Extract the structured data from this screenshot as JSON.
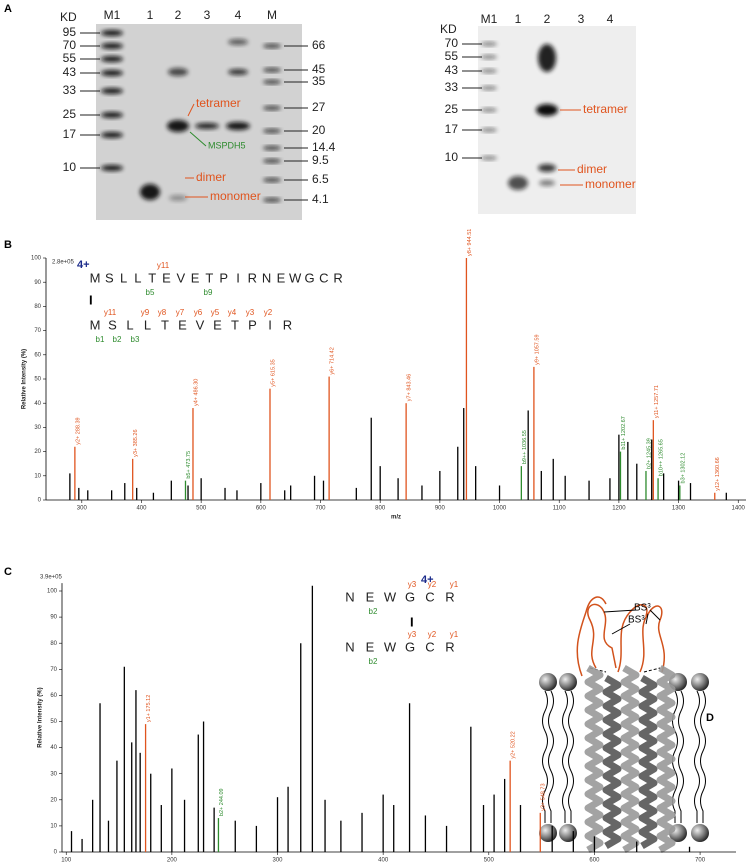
{
  "panel_labels": {
    "a": "A",
    "b": "B",
    "c": "C",
    "d": "D"
  },
  "gel_a": {
    "unit": "KD",
    "lanes": [
      "M1",
      "1",
      "2",
      "3",
      "4",
      "M"
    ],
    "markers_left": [
      "95",
      "70",
      "55",
      "43",
      "33",
      "25",
      "17",
      "10"
    ],
    "markers_right": [
      "66",
      "45",
      "35",
      "27",
      "20",
      "14.4",
      "9.5",
      "6.5",
      "4.1"
    ],
    "annotations": [
      "tetramer",
      "MSPDH5",
      "dimer",
      "monomer"
    ]
  },
  "gel_b": {
    "unit": "KD",
    "lanes": [
      "M1",
      "1",
      "2",
      "3",
      "4"
    ],
    "markers": [
      "70",
      "55",
      "43",
      "33",
      "25",
      "17",
      "10"
    ],
    "annotations": [
      "tetramer",
      "dimer",
      "monomer"
    ]
  },
  "peptide_b": {
    "charge": "4+",
    "link": "I",
    "top": [
      "M",
      "S",
      "L",
      "L",
      "T",
      "E",
      "V",
      "E",
      "T",
      "P",
      "I",
      "R",
      "N",
      "E",
      "W",
      "G",
      "C",
      "R"
    ],
    "top_ions_y": [
      "y11"
    ],
    "top_ions_b": [
      "b5",
      "b9"
    ],
    "bottom": [
      "M",
      "S",
      "L",
      "L",
      "T",
      "E",
      "V",
      "E",
      "T",
      "P",
      "I",
      "R"
    ],
    "bottom_ions_y": [
      "y11",
      "y9",
      "y8",
      "y7",
      "y6",
      "y5",
      "y4",
      "y3",
      "y2"
    ],
    "bottom_ions_b": [
      "b1",
      "b2",
      "b3"
    ]
  },
  "peptide_c": {
    "charge": "4+",
    "link": "I",
    "top": [
      "N",
      "E",
      "W",
      "G",
      "C",
      "R"
    ],
    "top_ions_y": [
      "y3",
      "y2",
      "y1"
    ],
    "top_ions_b": [
      "b2"
    ],
    "bottom": [
      "N",
      "E",
      "W",
      "G",
      "C",
      "R"
    ],
    "bottom_ions_y": [
      "y3",
      "y2",
      "y1"
    ],
    "bottom_ions_b": [
      "b2"
    ]
  },
  "diagram_d": {
    "labels": [
      "BS³",
      "BS³"
    ]
  },
  "chart_data": [
    {
      "type": "bar",
      "scale_label": "2.8e+05",
      "y_label": "Relative  Intensity (%)",
      "x_label": "m/z",
      "xlim": [
        240,
        1413
      ],
      "ylim": [
        0,
        100
      ],
      "xticks": [
        300,
        400,
        500,
        600,
        700,
        800,
        900,
        1000,
        1100,
        1200,
        1300,
        1400
      ],
      "yticks": [
        0,
        10,
        20,
        30,
        40,
        50,
        60,
        70,
        80,
        90,
        100
      ],
      "series": [
        {
          "color": "#000000",
          "x": [
            280,
            295,
            310,
            350,
            372,
            392,
            420,
            450,
            478,
            500,
            540,
            560,
            600,
            640,
            650,
            690,
            705,
            760,
            785,
            800,
            830,
            870,
            900,
            930,
            940,
            960,
            1000,
            1048,
            1070,
            1090,
            1110,
            1150,
            1185,
            1200,
            1215,
            1230,
            1255,
            1275,
            1300,
            1320,
            1380
          ],
          "values": [
            11,
            5,
            4,
            4,
            7,
            5,
            3,
            8,
            6,
            9,
            5,
            4,
            7,
            4,
            6,
            10,
            8,
            5,
            34,
            14,
            9,
            6,
            12,
            22,
            38,
            14,
            6,
            37,
            12,
            17,
            10,
            8,
            9,
            27,
            24,
            15,
            25,
            11,
            8,
            7,
            3
          ]
        },
        {
          "color": "#e0541e",
          "x": [
            288.39,
            385.26,
            486.3,
            615.35,
            714.42,
            843.46,
            944.51,
            1057.59,
            1257.71,
            1360.66
          ],
          "values": [
            22,
            17,
            38,
            46,
            51,
            40,
            100,
            55,
            33,
            3
          ],
          "labels": [
            "y2+ 288.39",
            "y3+ 385.26",
            "y4+ 486.30",
            "y5+ 615.35",
            "y6+ 714.42",
            "y7+ 843.46",
            "y8+ 944.51",
            "y9+ 1057.59",
            "y11+ 1257.71",
            "y12+ 1360.66"
          ]
        },
        {
          "color": "#2e8b2e",
          "x": [
            473.75,
            1036.55,
            1202.67,
            1245.39,
            1265.65,
            1302.12
          ],
          "values": [
            8,
            14,
            20,
            12,
            9,
            6
          ],
          "labels": [
            "b5+ 473.75",
            "b9++ 1036.55",
            "b11+ 1202.67",
            "b2+ 1245.39",
            "b10++ 1265.65",
            "b3+ 1302.12"
          ]
        }
      ]
    },
    {
      "type": "bar",
      "scale_label": "3.9e+05",
      "y_label": "Relative  Intensity (%)",
      "xlim": [
        96,
        734
      ],
      "ylim": [
        0,
        103
      ],
      "xticks": [
        100,
        200,
        300,
        400,
        500,
        600,
        700
      ],
      "yticks": [
        0,
        10,
        20,
        30,
        40,
        50,
        60,
        70,
        80,
        90,
        100
      ],
      "series": [
        {
          "color": "#000000",
          "x": [
            105,
            115,
            125,
            132,
            140,
            148,
            155,
            162,
            166,
            170,
            180,
            190,
            200,
            212,
            225,
            230,
            240,
            260,
            280,
            300,
            310,
            322,
            333,
            345,
            360,
            380,
            400,
            410,
            425,
            440,
            460,
            483,
            495,
            505,
            515,
            530,
            560,
            580,
            600,
            640,
            690
          ],
          "values": [
            8,
            5,
            20,
            57,
            12,
            35,
            71,
            42,
            62,
            38,
            30,
            18,
            32,
            20,
            45,
            50,
            17,
            12,
            10,
            21,
            25,
            80,
            102,
            20,
            12,
            15,
            22,
            18,
            57,
            14,
            10,
            48,
            18,
            22,
            28,
            18,
            10,
            8,
            6,
            4,
            2
          ]
        },
        {
          "color": "#e0541e",
          "x": [
            175.12,
            520.22,
            548.73
          ],
          "values": [
            49,
            35,
            15
          ],
          "labels": [
            "y1+ 175.12",
            "y2+ 520.22",
            "y3+ 548.73"
          ]
        },
        {
          "color": "#2e8b2e",
          "x": [
            244.09
          ],
          "values": [
            13
          ],
          "labels": [
            "b2+ 244.09"
          ]
        }
      ]
    }
  ]
}
